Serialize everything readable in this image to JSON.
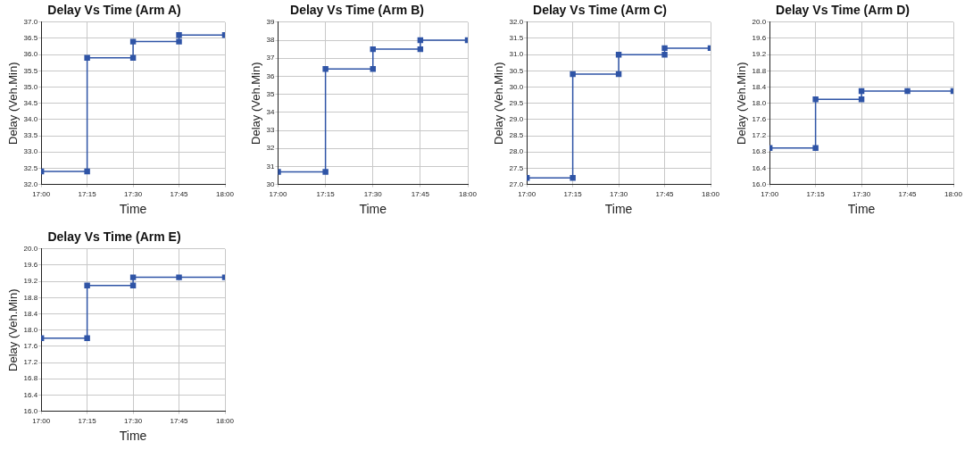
{
  "chart_data": [
    {
      "type": "line",
      "title": "Delay Vs Time (Arm A)",
      "xlabel": "Time",
      "ylabel": "Delay (Veh.Min)",
      "marker": "square",
      "grid": true,
      "xlim": [
        17,
        18
      ],
      "xticks": [
        {
          "value": 17,
          "label": "17:00"
        },
        {
          "value": 17.25,
          "label": "17:15"
        },
        {
          "value": 17.5,
          "label": "17:30"
        },
        {
          "value": 17.75,
          "label": "17:45"
        },
        {
          "value": 18,
          "label": "18:00"
        }
      ],
      "ylim": [
        32,
        37
      ],
      "yticks": [
        {
          "value": 32,
          "label": "32.0"
        },
        {
          "value": 32.5,
          "label": "32.5"
        },
        {
          "value": 33,
          "label": "33.0"
        },
        {
          "value": 33.5,
          "label": "33.5"
        },
        {
          "value": 34,
          "label": "34.0"
        },
        {
          "value": 34.5,
          "label": "34.5"
        },
        {
          "value": 35,
          "label": "35.0"
        },
        {
          "value": 35.5,
          "label": "35.5"
        },
        {
          "value": 36,
          "label": "36.0"
        },
        {
          "value": 36.5,
          "label": "36.5"
        },
        {
          "value": 37,
          "label": "37.0"
        }
      ],
      "series": [
        {
          "color": "#2f54a6",
          "x": [
            17,
            17.25,
            17.25,
            17.5,
            17.5,
            17.75,
            17.75,
            18
          ],
          "values": [
            32.4,
            32.4,
            35.9,
            35.9,
            36.4,
            36.4,
            36.6,
            36.6
          ]
        }
      ]
    },
    {
      "type": "line",
      "title": "Delay Vs Time (Arm B)",
      "xlabel": "Time",
      "ylabel": "Delay (Veh.Min)",
      "marker": "square",
      "grid": true,
      "xlim": [
        17,
        18
      ],
      "xticks": [
        {
          "value": 17,
          "label": "17:00"
        },
        {
          "value": 17.25,
          "label": "17:15"
        },
        {
          "value": 17.5,
          "label": "17:30"
        },
        {
          "value": 17.75,
          "label": "17:45"
        },
        {
          "value": 18,
          "label": "18:00"
        }
      ],
      "ylim": [
        30,
        39
      ],
      "yticks": [
        30,
        31,
        32,
        33,
        34,
        35,
        36,
        37,
        38,
        39
      ],
      "series": [
        {
          "color": "#2f54a6",
          "x": [
            17,
            17.25,
            17.25,
            17.5,
            17.5,
            17.75,
            17.75,
            18
          ],
          "values": [
            30.7,
            30.7,
            36.4,
            36.4,
            37.5,
            37.5,
            38.0,
            38.0
          ]
        }
      ]
    },
    {
      "type": "line",
      "title": "Delay Vs Time (Arm C)",
      "xlabel": "Time",
      "ylabel": "Delay (Veh.Min)",
      "marker": "square",
      "grid": true,
      "xlim": [
        17,
        18
      ],
      "xticks": [
        {
          "value": 17,
          "label": "17:00"
        },
        {
          "value": 17.25,
          "label": "17:15"
        },
        {
          "value": 17.5,
          "label": "17:30"
        },
        {
          "value": 17.75,
          "label": "17:45"
        },
        {
          "value": 18,
          "label": "18:00"
        }
      ],
      "ylim": [
        27,
        32
      ],
      "yticks": [
        {
          "value": 27,
          "label": "27.0"
        },
        {
          "value": 27.5,
          "label": "27.5"
        },
        {
          "value": 28,
          "label": "28.0"
        },
        {
          "value": 28.5,
          "label": "28.5"
        },
        {
          "value": 29,
          "label": "29.0"
        },
        {
          "value": 29.5,
          "label": "29.5"
        },
        {
          "value": 30,
          "label": "30.0"
        },
        {
          "value": 30.5,
          "label": "30.5"
        },
        {
          "value": 31,
          "label": "31.0"
        },
        {
          "value": 31.5,
          "label": "31.5"
        },
        {
          "value": 32,
          "label": "32.0"
        }
      ],
      "series": [
        {
          "color": "#2f54a6",
          "x": [
            17,
            17.25,
            17.25,
            17.5,
            17.5,
            17.75,
            17.75,
            18
          ],
          "values": [
            27.2,
            27.2,
            30.4,
            30.4,
            31.0,
            31.0,
            31.2,
            31.2
          ]
        }
      ]
    },
    {
      "type": "line",
      "title": "Delay Vs Time (Arm D)",
      "xlabel": "Time",
      "ylabel": "Delay (Veh.Min)",
      "marker": "square",
      "grid": true,
      "xlim": [
        17,
        18
      ],
      "xticks": [
        {
          "value": 17,
          "label": "17:00"
        },
        {
          "value": 17.25,
          "label": "17:15"
        },
        {
          "value": 17.5,
          "label": "17:30"
        },
        {
          "value": 17.75,
          "label": "17:45"
        },
        {
          "value": 18,
          "label": "18:00"
        }
      ],
      "ylim": [
        16,
        20
      ],
      "yticks": [
        {
          "value": 16,
          "label": "16.0"
        },
        {
          "value": 16.4,
          "label": "16.4"
        },
        {
          "value": 16.8,
          "label": "16.8"
        },
        {
          "value": 17.2,
          "label": "17.2"
        },
        {
          "value": 17.6,
          "label": "17.6"
        },
        {
          "value": 18,
          "label": "18.0"
        },
        {
          "value": 18.4,
          "label": "18.4"
        },
        {
          "value": 18.8,
          "label": "18.8"
        },
        {
          "value": 19.2,
          "label": "19.2"
        },
        {
          "value": 19.6,
          "label": "19.6"
        },
        {
          "value": 20,
          "label": "20.0"
        }
      ],
      "series": [
        {
          "color": "#2f54a6",
          "x": [
            17,
            17.25,
            17.25,
            17.5,
            17.5,
            17.75,
            18
          ],
          "values": [
            16.9,
            16.9,
            18.1,
            18.1,
            18.3,
            18.3,
            18.3
          ]
        }
      ]
    },
    {
      "type": "line",
      "title": "Delay Vs Time (Arm E)",
      "xlabel": "Time",
      "ylabel": "Delay (Veh.Min)",
      "marker": "square",
      "grid": true,
      "xlim": [
        17,
        18
      ],
      "xticks": [
        {
          "value": 17,
          "label": "17:00"
        },
        {
          "value": 17.25,
          "label": "17:15"
        },
        {
          "value": 17.5,
          "label": "17:30"
        },
        {
          "value": 17.75,
          "label": "17:45"
        },
        {
          "value": 18,
          "label": "18:00"
        }
      ],
      "ylim": [
        16,
        20
      ],
      "yticks": [
        {
          "value": 16,
          "label": "16.0"
        },
        {
          "value": 16.4,
          "label": "16.4"
        },
        {
          "value": 16.8,
          "label": "16.8"
        },
        {
          "value": 17.2,
          "label": "17.2"
        },
        {
          "value": 17.6,
          "label": "17.6"
        },
        {
          "value": 18,
          "label": "18.0"
        },
        {
          "value": 18.4,
          "label": "18.4"
        },
        {
          "value": 18.8,
          "label": "18.8"
        },
        {
          "value": 19.2,
          "label": "19.2"
        },
        {
          "value": 19.6,
          "label": "19.6"
        },
        {
          "value": 20,
          "label": "20.0"
        }
      ],
      "series": [
        {
          "color": "#2f54a6",
          "x": [
            17,
            17.25,
            17.25,
            17.5,
            17.5,
            17.75,
            18
          ],
          "values": [
            17.8,
            17.8,
            19.1,
            19.1,
            19.3,
            19.3,
            19.3
          ]
        }
      ]
    }
  ]
}
